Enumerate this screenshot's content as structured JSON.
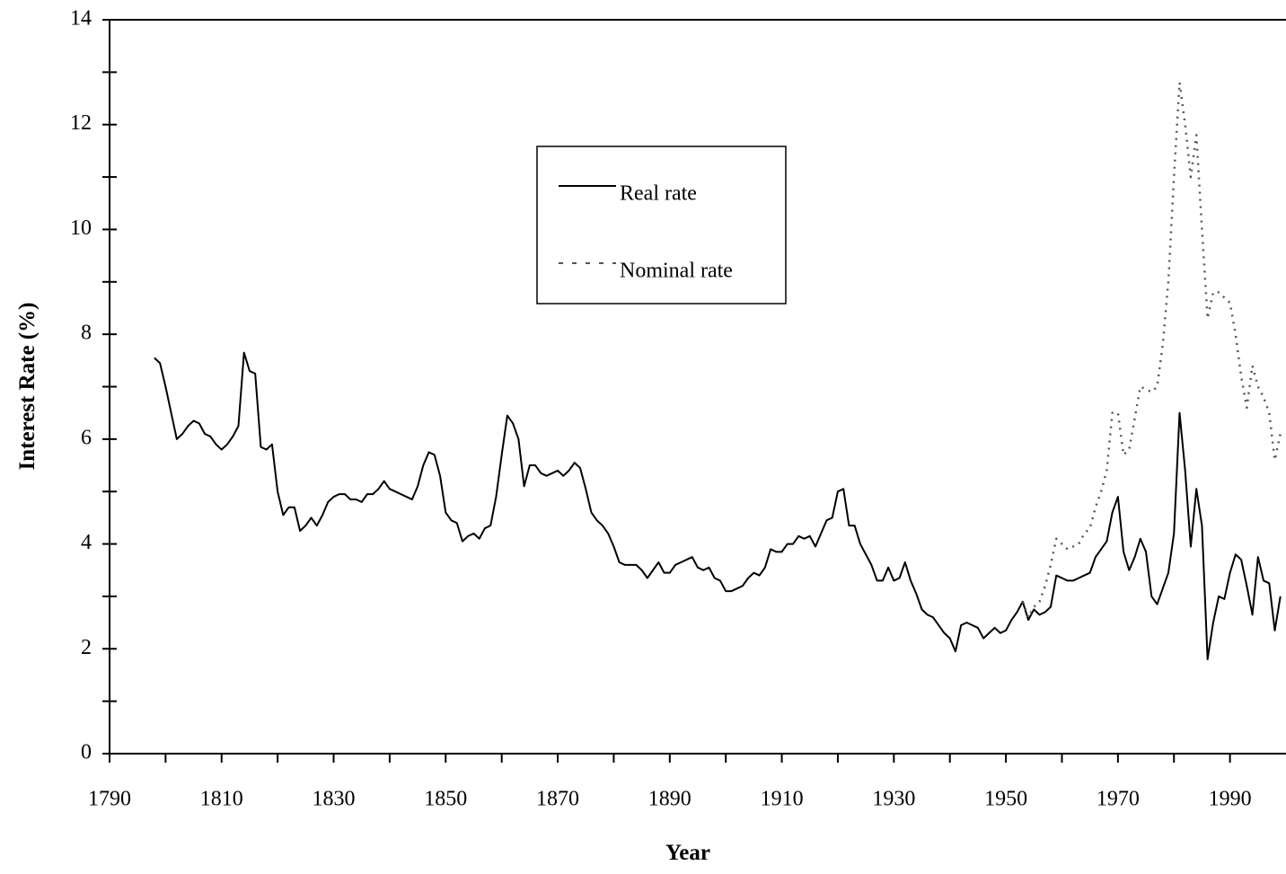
{
  "chart_data": {
    "type": "line",
    "xlabel": "Year",
    "ylabel": "Interest Rate (%)",
    "x": [
      1798,
      1799,
      1800,
      1801,
      1802,
      1803,
      1804,
      1805,
      1806,
      1807,
      1808,
      1809,
      1810,
      1811,
      1812,
      1813,
      1814,
      1815,
      1816,
      1817,
      1818,
      1819,
      1820,
      1821,
      1822,
      1823,
      1824,
      1825,
      1826,
      1827,
      1828,
      1829,
      1830,
      1831,
      1832,
      1833,
      1834,
      1835,
      1836,
      1837,
      1838,
      1839,
      1840,
      1841,
      1842,
      1843,
      1844,
      1845,
      1846,
      1847,
      1848,
      1849,
      1850,
      1851,
      1852,
      1853,
      1854,
      1855,
      1856,
      1857,
      1858,
      1859,
      1860,
      1861,
      1862,
      1863,
      1864,
      1865,
      1866,
      1867,
      1868,
      1869,
      1870,
      1871,
      1872,
      1873,
      1874,
      1875,
      1876,
      1877,
      1878,
      1879,
      1880,
      1881,
      1882,
      1883,
      1884,
      1885,
      1886,
      1887,
      1888,
      1889,
      1890,
      1891,
      1892,
      1893,
      1894,
      1895,
      1896,
      1897,
      1898,
      1899,
      1900,
      1901,
      1902,
      1903,
      1904,
      1905,
      1906,
      1907,
      1908,
      1909,
      1910,
      1911,
      1912,
      1913,
      1914,
      1915,
      1916,
      1917,
      1918,
      1919,
      1920,
      1921,
      1922,
      1923,
      1924,
      1925,
      1926,
      1927,
      1928,
      1929,
      1930,
      1931,
      1932,
      1933,
      1934,
      1935,
      1936,
      1937,
      1938,
      1939,
      1940,
      1941,
      1942,
      1943,
      1944,
      1945,
      1946,
      1947,
      1948,
      1949,
      1950,
      1951,
      1952,
      1953,
      1954,
      1955,
      1956,
      1957,
      1958,
      1959,
      1960,
      1961,
      1962,
      1963,
      1964,
      1965,
      1966,
      1967,
      1968,
      1969,
      1970,
      1971,
      1972,
      1973,
      1974,
      1975,
      1976,
      1977,
      1978,
      1979,
      1980,
      1981,
      1982,
      1983,
      1984,
      1985,
      1986,
      1987,
      1988,
      1989,
      1990,
      1991,
      1992,
      1993,
      1994,
      1995,
      1996,
      1997,
      1998,
      1999
    ],
    "series": [
      {
        "name": "Real rate",
        "color": "#000000",
        "style": "solid",
        "values": [
          7.55,
          7.45,
          7.0,
          6.5,
          6.0,
          6.1,
          6.25,
          6.35,
          6.3,
          6.1,
          6.05,
          5.9,
          5.8,
          5.9,
          6.05,
          6.25,
          7.65,
          7.3,
          7.25,
          5.85,
          5.8,
          5.9,
          5.0,
          4.55,
          4.7,
          4.7,
          4.25,
          4.35,
          4.5,
          4.35,
          4.55,
          4.8,
          4.9,
          4.95,
          4.95,
          4.85,
          4.85,
          4.8,
          4.95,
          4.95,
          5.05,
          5.2,
          5.05,
          5.0,
          4.95,
          4.9,
          4.85,
          5.1,
          5.5,
          5.75,
          5.7,
          5.3,
          4.6,
          4.45,
          4.4,
          4.05,
          4.15,
          4.2,
          4.1,
          4.3,
          4.35,
          4.9,
          5.7,
          6.45,
          6.3,
          6.0,
          5.1,
          5.5,
          5.5,
          5.35,
          5.3,
          5.35,
          5.4,
          5.3,
          5.4,
          5.55,
          5.45,
          5.05,
          4.6,
          4.45,
          4.35,
          4.2,
          3.95,
          3.65,
          3.6,
          3.6,
          3.6,
          3.5,
          3.35,
          3.5,
          3.65,
          3.45,
          3.45,
          3.6,
          3.65,
          3.7,
          3.75,
          3.55,
          3.5,
          3.55,
          3.35,
          3.3,
          3.1,
          3.1,
          3.15,
          3.2,
          3.35,
          3.45,
          3.4,
          3.55,
          3.9,
          3.85,
          3.85,
          4.0,
          4.0,
          4.15,
          4.1,
          4.15,
          3.95,
          4.2,
          4.45,
          4.5,
          5.0,
          5.05,
          4.35,
          4.35,
          4.0,
          3.8,
          3.6,
          3.3,
          3.3,
          3.55,
          3.3,
          3.35,
          3.65,
          3.3,
          3.05,
          2.75,
          2.65,
          2.6,
          2.45,
          2.3,
          2.2,
          1.95,
          2.45,
          2.5,
          2.45,
          2.4,
          2.2,
          2.3,
          2.4,
          2.3,
          2.35,
          2.55,
          2.7,
          2.9,
          2.55,
          2.75,
          2.65,
          2.7,
          2.8,
          3.4,
          3.35,
          3.3,
          3.3,
          3.35,
          3.4,
          3.45,
          3.75,
          3.9,
          4.05,
          4.6,
          4.9,
          3.85,
          3.5,
          3.75,
          4.1,
          3.85,
          3.0,
          2.85,
          3.15,
          3.45,
          4.2,
          6.5,
          5.4,
          3.95,
          5.05,
          4.35,
          1.8,
          2.5,
          3.0,
          2.95,
          3.45,
          3.8,
          3.7,
          3.2,
          2.65,
          3.75,
          3.3,
          3.25,
          2.35,
          3.0
        ]
      },
      {
        "name": "Nominal rate",
        "color": "#555555",
        "style": "dotted",
        "values": [
          null,
          null,
          null,
          null,
          null,
          null,
          null,
          null,
          null,
          null,
          null,
          null,
          null,
          null,
          null,
          null,
          null,
          null,
          null,
          null,
          null,
          null,
          null,
          null,
          null,
          null,
          null,
          null,
          null,
          null,
          null,
          null,
          null,
          null,
          null,
          null,
          null,
          null,
          null,
          null,
          null,
          null,
          null,
          null,
          null,
          null,
          null,
          null,
          null,
          null,
          null,
          null,
          null,
          null,
          null,
          null,
          null,
          null,
          null,
          null,
          null,
          null,
          null,
          null,
          null,
          null,
          null,
          null,
          null,
          null,
          null,
          null,
          null,
          null,
          null,
          null,
          null,
          null,
          null,
          null,
          null,
          null,
          null,
          null,
          null,
          null,
          null,
          null,
          null,
          null,
          null,
          null,
          null,
          null,
          null,
          null,
          null,
          null,
          null,
          null,
          null,
          null,
          null,
          null,
          null,
          null,
          null,
          null,
          null,
          null,
          null,
          null,
          null,
          null,
          null,
          null,
          null,
          null,
          null,
          null,
          null,
          null,
          null,
          null,
          null,
          null,
          null,
          null,
          null,
          null,
          null,
          null,
          null,
          null,
          null,
          null,
          null,
          null,
          null,
          null,
          null,
          null,
          null,
          null,
          null,
          null,
          null,
          null,
          null,
          null,
          null,
          null,
          null,
          null,
          null,
          2.9,
          2.6,
          2.8,
          2.9,
          3.2,
          3.6,
          4.1,
          4.0,
          3.9,
          3.95,
          4.0,
          4.2,
          4.3,
          4.7,
          5.0,
          5.4,
          6.5,
          6.5,
          5.7,
          5.8,
          6.4,
          7.0,
          6.95,
          6.9,
          7.0,
          7.8,
          9.0,
          11.0,
          12.8,
          12.0,
          11.0,
          11.8,
          10.0,
          8.3,
          8.8,
          8.8,
          8.7,
          8.6,
          8.0,
          7.2,
          6.6,
          7.4,
          7.0,
          6.8,
          6.5,
          5.6,
          6.1
        ]
      }
    ],
    "xlim": [
      1790,
      2000
    ],
    "xticks": [
      1790,
      1810,
      1830,
      1850,
      1870,
      1890,
      1910,
      1930,
      1950,
      1970,
      1990
    ],
    "xminorticks": [
      1800,
      1820,
      1840,
      1860,
      1880,
      1900,
      1920,
      1940,
      1960,
      1980
    ],
    "ylim": [
      0,
      14
    ],
    "yticks": [
      0,
      2,
      4,
      6,
      8,
      10,
      12,
      14
    ],
    "yminorticks": [
      1,
      3,
      5,
      7,
      9,
      11,
      13
    ],
    "grid": false,
    "legend_loc": "upper center"
  }
}
